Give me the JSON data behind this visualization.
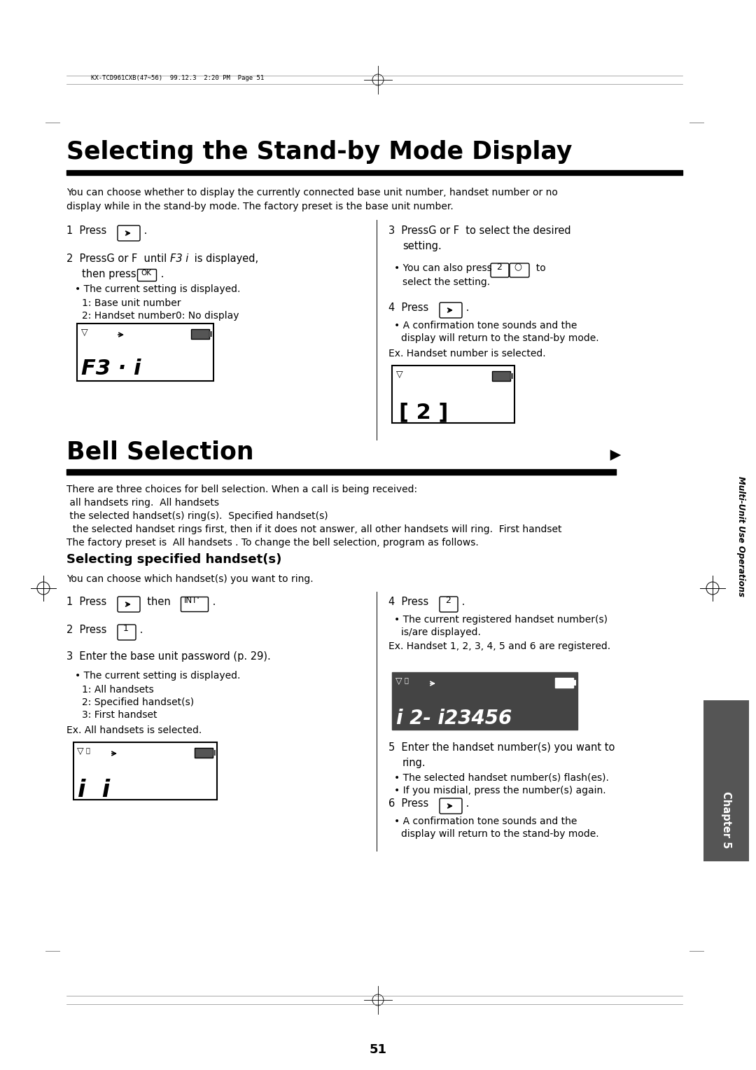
{
  "bg_color": "#ffffff",
  "page_width": 10.8,
  "page_height": 15.28,
  "dpi": 100,
  "pw": 1080,
  "ph": 1528,
  "header_text": "KX-TCD961CXB(47~56)  99.12.3  2:20 PM  Page 51",
  "title1": "Selecting the Stand-by Mode Display",
  "title2": "Bell Selection",
  "intro1_line1": "You can choose whether to display the currently connected base unit number, handset number or no",
  "intro1_line2": "display while in the stand-by mode. The factory preset is the base unit number.",
  "display1_text": "F3 · i",
  "display2_text": "[ 2 ]",
  "display3_text": "i  i",
  "display4_text": "i 2- i23456",
  "bell_lines": [
    "There are three choices for bell selection. When a call is being received:",
    " all handsets ring.  All handsets",
    " the selected handset(s) ring(s).  Specified handset(s)",
    "  the selected handset rings first, then if it does not answer, all other handsets will ring.  First handset",
    "The factory preset is  All handsets . To change the bell selection, program as follows."
  ],
  "subheading": "Selecting specified handset(s)",
  "sub_intro": "You can choose which handset(s) you want to ring.",
  "sidebar_text": "Multi-Unit Use Operations",
  "chapter_text": "Chapter 5",
  "page_number": "51"
}
